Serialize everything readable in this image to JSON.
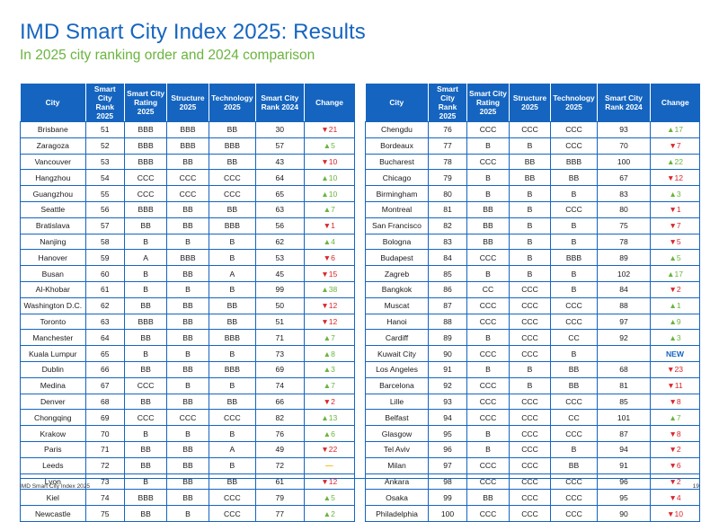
{
  "title": "IMD Smart City Index 2025: Results",
  "subtitle": "In 2025 city ranking order and 2024 comparison",
  "headers": [
    "City",
    "Smart City Rank 2025",
    "Smart City Rating 2025",
    "Structure 2025",
    "Technology 2025",
    "Smart City Rank 2024",
    "Change"
  ],
  "left_rows": [
    [
      "Brisbane",
      "51",
      "BBB",
      "BBB",
      "BB",
      "30",
      "▼21"
    ],
    [
      "Zaragoza",
      "52",
      "BBB",
      "BBB",
      "BBB",
      "57",
      "▲5"
    ],
    [
      "Vancouver",
      "53",
      "BBB",
      "BB",
      "BB",
      "43",
      "▼10"
    ],
    [
      "Hangzhou",
      "54",
      "CCC",
      "CCC",
      "CCC",
      "64",
      "▲10"
    ],
    [
      "Guangzhou",
      "55",
      "CCC",
      "CCC",
      "CCC",
      "65",
      "▲10"
    ],
    [
      "Seattle",
      "56",
      "BBB",
      "BB",
      "BB",
      "63",
      "▲7"
    ],
    [
      "Bratislava",
      "57",
      "BB",
      "BB",
      "BBB",
      "56",
      "▼1"
    ],
    [
      "Nanjing",
      "58",
      "B",
      "B",
      "B",
      "62",
      "▲4"
    ],
    [
      "Hanover",
      "59",
      "A",
      "BBB",
      "B",
      "53",
      "▼6"
    ],
    [
      "Busan",
      "60",
      "B",
      "BB",
      "A",
      "45",
      "▼15"
    ],
    [
      "Al-Khobar",
      "61",
      "B",
      "B",
      "B",
      "99",
      "▲38"
    ],
    [
      "Washington D.C.",
      "62",
      "BB",
      "BB",
      "BB",
      "50",
      "▼12"
    ],
    [
      "Toronto",
      "63",
      "BBB",
      "BB",
      "BB",
      "51",
      "▼12"
    ],
    [
      "Manchester",
      "64",
      "BB",
      "BB",
      "BBB",
      "71",
      "▲7"
    ],
    [
      "Kuala Lumpur",
      "65",
      "B",
      "B",
      "B",
      "73",
      "▲8"
    ],
    [
      "Dublin",
      "66",
      "BB",
      "BB",
      "BBB",
      "69",
      "▲3"
    ],
    [
      "Medina",
      "67",
      "CCC",
      "B",
      "B",
      "74",
      "▲7"
    ],
    [
      "Denver",
      "68",
      "BB",
      "BB",
      "BB",
      "66",
      "▼2"
    ],
    [
      "Chongqing",
      "69",
      "CCC",
      "CCC",
      "CCC",
      "82",
      "▲13"
    ],
    [
      "Krakow",
      "70",
      "B",
      "B",
      "B",
      "76",
      "▲6"
    ],
    [
      "Paris",
      "71",
      "BB",
      "BB",
      "A",
      "49",
      "▼22"
    ],
    [
      "Leeds",
      "72",
      "BB",
      "BB",
      "B",
      "72",
      "—"
    ],
    [
      "Lyon",
      "73",
      "B",
      "BB",
      "BB",
      "61",
      "▼12"
    ],
    [
      "Kiel",
      "74",
      "BBB",
      "BB",
      "CCC",
      "79",
      "▲5"
    ],
    [
      "Newcastle",
      "75",
      "BB",
      "B",
      "CCC",
      "77",
      "▲2"
    ]
  ],
  "right_rows": [
    [
      "Chengdu",
      "76",
      "CCC",
      "CCC",
      "CCC",
      "93",
      "▲17"
    ],
    [
      "Bordeaux",
      "77",
      "B",
      "B",
      "CCC",
      "70",
      "▼7"
    ],
    [
      "Bucharest",
      "78",
      "CCC",
      "BB",
      "BBB",
      "100",
      "▲22"
    ],
    [
      "Chicago",
      "79",
      "B",
      "BB",
      "BB",
      "67",
      "▼12"
    ],
    [
      "Birmingham",
      "80",
      "B",
      "B",
      "B",
      "83",
      "▲3"
    ],
    [
      "Montreal",
      "81",
      "BB",
      "B",
      "CCC",
      "80",
      "▼1"
    ],
    [
      "San Francisco",
      "82",
      "BB",
      "B",
      "B",
      "75",
      "▼7"
    ],
    [
      "Bologna",
      "83",
      "BB",
      "B",
      "B",
      "78",
      "▼5"
    ],
    [
      "Budapest",
      "84",
      "CCC",
      "B",
      "BBB",
      "89",
      "▲5"
    ],
    [
      "Zagreb",
      "85",
      "B",
      "B",
      "B",
      "102",
      "▲17"
    ],
    [
      "Bangkok",
      "86",
      "CC",
      "CCC",
      "B",
      "84",
      "▼2"
    ],
    [
      "Muscat",
      "87",
      "CCC",
      "CCC",
      "CCC",
      "88",
      "▲1"
    ],
    [
      "Hanoi",
      "88",
      "CCC",
      "CCC",
      "CCC",
      "97",
      "▲9"
    ],
    [
      "Cardiff",
      "89",
      "B",
      "CCC",
      "CC",
      "92",
      "▲3"
    ],
    [
      "Kuwait City",
      "90",
      "CCC",
      "CCC",
      "B",
      "",
      "NEW"
    ],
    [
      "Los Angeles",
      "91",
      "B",
      "B",
      "BB",
      "68",
      "▼23"
    ],
    [
      "Barcelona",
      "92",
      "CCC",
      "B",
      "BB",
      "81",
      "▼11"
    ],
    [
      "Lille",
      "93",
      "CCC",
      "CCC",
      "CCC",
      "85",
      "▼8"
    ],
    [
      "Belfast",
      "94",
      "CCC",
      "CCC",
      "CC",
      "101",
      "▲7"
    ],
    [
      "Glasgow",
      "95",
      "B",
      "CCC",
      "CCC",
      "87",
      "▼8"
    ],
    [
      "Tel Aviv",
      "96",
      "B",
      "CCC",
      "B",
      "94",
      "▼2"
    ],
    [
      "Milan",
      "97",
      "CCC",
      "CCC",
      "BB",
      "91",
      "▼6"
    ],
    [
      "Ankara",
      "98",
      "CCC",
      "CCC",
      "CCC",
      "96",
      "▼2"
    ],
    [
      "Osaka",
      "99",
      "BB",
      "CCC",
      "CCC",
      "95",
      "▼4"
    ],
    [
      "Philadelphia",
      "100",
      "CCC",
      "CCC",
      "CCC",
      "90",
      "▼10"
    ]
  ],
  "footer": {
    "left": "IMD Smart City Index 2025",
    "right": "19"
  },
  "colors": {
    "header_bg": "#1565c0",
    "up": "#6ab43e",
    "down": "#d9262c",
    "flat": "#f2b600"
  }
}
